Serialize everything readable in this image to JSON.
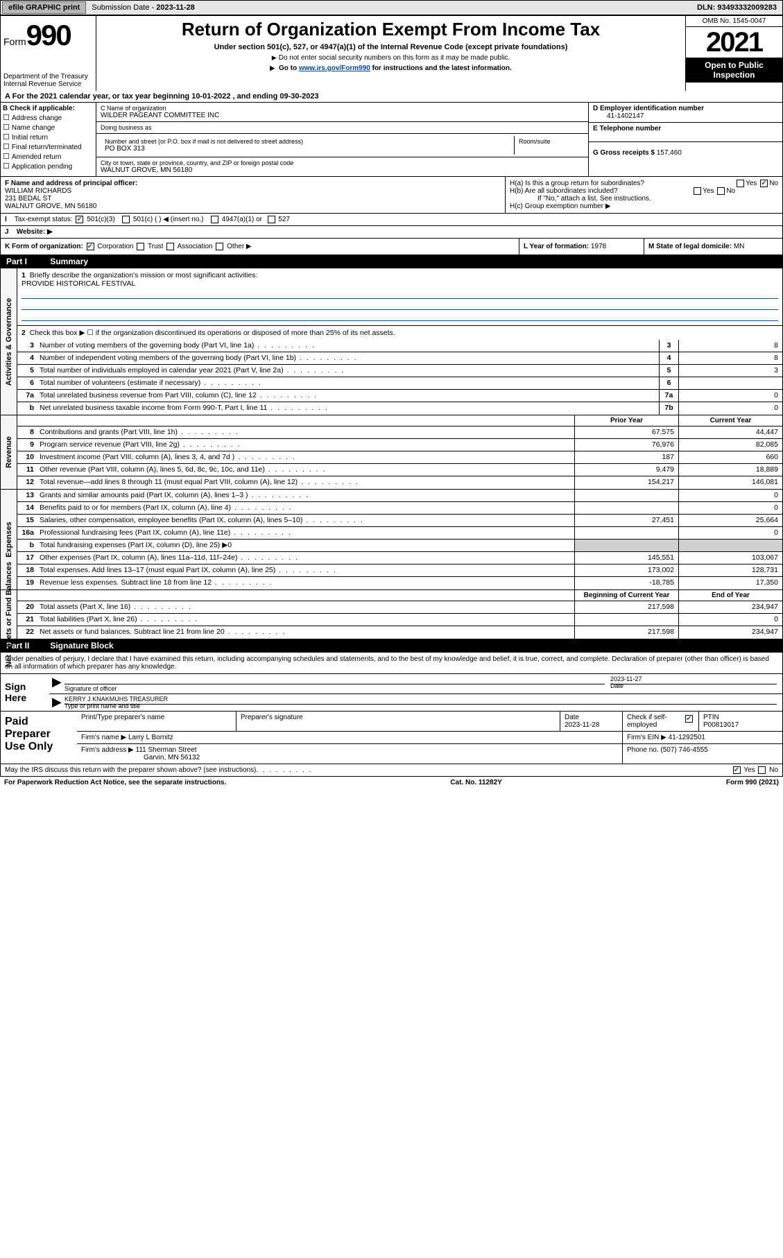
{
  "topbar": {
    "efile_label": "efile GRAPHIC print",
    "submission_label": "Submission Date -",
    "submission_date": "2023-11-28",
    "dln_label": "DLN:",
    "dln": "93493332009283"
  },
  "header": {
    "form_prefix": "Form",
    "form_num": "990",
    "dept": "Department of the Treasury",
    "irs": "Internal Revenue Service",
    "title": "Return of Organization Exempt From Income Tax",
    "sub1": "Under section 501(c), 527, or 4947(a)(1) of the Internal Revenue Code (except private foundations)",
    "sub2": "Do not enter social security numbers on this form as it may be made public.",
    "sub3_pre": "Go to ",
    "sub3_link": "www.irs.gov/Form990",
    "sub3_post": " for instructions and the latest information.",
    "omb": "OMB No. 1545-0047",
    "year": "2021",
    "open_public": "Open to Public Inspection"
  },
  "period": {
    "text": "For the 2021 calendar year, or tax year beginning 10-01-2022  , and ending 09-30-2023"
  },
  "section_b": {
    "label": "B Check if applicable:",
    "items": [
      "Address change",
      "Name change",
      "Initial return",
      "Final return/terminated",
      "Amended return",
      "Application pending"
    ]
  },
  "section_c": {
    "name_label": "C Name of organization",
    "name": "WILDER PAGEANT COMMITTEE INC",
    "dba_label": "Doing business as",
    "dba": "",
    "street_label": "Number and street (or P.O. box if mail is not delivered to street address)",
    "room_label": "Room/suite",
    "street": "PO BOX 313",
    "city_label": "City or town, state or province, country, and ZIP or foreign postal code",
    "city": "WALNUT GROVE, MN  56180"
  },
  "section_d": {
    "label": "D Employer identification number",
    "value": "41-1402147"
  },
  "section_e": {
    "label": "E Telephone number",
    "value": ""
  },
  "section_g": {
    "label": "G Gross receipts $",
    "value": "157,460"
  },
  "section_f": {
    "label": "F Name and address of principal officer:",
    "name": "WILLIAM RICHARDS",
    "addr1": "231 BEDAL ST",
    "addr2": "WALNUT GROVE, MN  56180"
  },
  "section_h": {
    "ha": "H(a)  Is this a group return for subordinates?",
    "hb": "H(b)  Are all subordinates included?",
    "hb_note": "If \"No,\" attach a list. See instructions.",
    "hc": "H(c)  Group exemption number ▶"
  },
  "section_i": {
    "label": "Tax-exempt status:",
    "opt1": "501(c)(3)",
    "opt2": "501(c) (  ) ◀ (insert no.)",
    "opt3": "4947(a)(1) or",
    "opt4": "527"
  },
  "section_j": {
    "label": "Website: ▶",
    "value": ""
  },
  "section_k": {
    "label": "K Form of organization:",
    "corp": "Corporation",
    "trust": "Trust",
    "assoc": "Association",
    "other": "Other ▶"
  },
  "section_l": {
    "label": "L Year of formation:",
    "value": "1978"
  },
  "section_m": {
    "label": "M State of legal domicile:",
    "value": "MN"
  },
  "part1": {
    "header": "Summary",
    "gov_label": "Activities & Governance",
    "rev_label": "Revenue",
    "exp_label": "Expenses",
    "net_label": "Net Assets or Fund Balances",
    "line1_label": "Briefly describe the organization's mission or most significant activities:",
    "line1_val": "PROVIDE HISTORICAL FESTIVAL",
    "line2": "Check this box ▶ ☐  if the organization discontinued its operations or disposed of more than 25% of its net assets.",
    "hdr_prior": "Prior Year",
    "hdr_current": "Current Year",
    "hdr_begin": "Beginning of Current Year",
    "hdr_end": "End of Year",
    "lines_gov": [
      {
        "n": "3",
        "t": "Number of voting members of the governing body (Part VI, line 1a)",
        "box": "3",
        "v": "8"
      },
      {
        "n": "4",
        "t": "Number of independent voting members of the governing body (Part VI, line 1b)",
        "box": "4",
        "v": "8"
      },
      {
        "n": "5",
        "t": "Total number of individuals employed in calendar year 2021 (Part V, line 2a)",
        "box": "5",
        "v": "3"
      },
      {
        "n": "6",
        "t": "Total number of volunteers (estimate if necessary)",
        "box": "6",
        "v": ""
      },
      {
        "n": "7a",
        "t": "Total unrelated business revenue from Part VIII, column (C), line 12",
        "box": "7a",
        "v": "0"
      },
      {
        "n": "b",
        "t": "Net unrelated business taxable income from Form 990-T, Part I, line 11",
        "box": "7b",
        "v": "0"
      }
    ],
    "lines_rev": [
      {
        "n": "8",
        "t": "Contributions and grants (Part VIII, line 1h)",
        "p": "67,575",
        "c": "44,447"
      },
      {
        "n": "9",
        "t": "Program service revenue (Part VIII, line 2g)",
        "p": "76,976",
        "c": "82,085"
      },
      {
        "n": "10",
        "t": "Investment income (Part VIII, column (A), lines 3, 4, and 7d )",
        "p": "187",
        "c": "660"
      },
      {
        "n": "11",
        "t": "Other revenue (Part VIII, column (A), lines 5, 6d, 8c, 9c, 10c, and 11e)",
        "p": "9,479",
        "c": "18,889"
      },
      {
        "n": "12",
        "t": "Total revenue—add lines 8 through 11 (must equal Part VIII, column (A), line 12)",
        "p": "154,217",
        "c": "146,081"
      }
    ],
    "lines_exp": [
      {
        "n": "13",
        "t": "Grants and similar amounts paid (Part IX, column (A), lines 1–3 )",
        "p": "",
        "c": "0"
      },
      {
        "n": "14",
        "t": "Benefits paid to or for members (Part IX, column (A), line 4)",
        "p": "",
        "c": "0"
      },
      {
        "n": "15",
        "t": "Salaries, other compensation, employee benefits (Part IX, column (A), lines 5–10)",
        "p": "27,451",
        "c": "25,664"
      },
      {
        "n": "16a",
        "t": "Professional fundraising fees (Part IX, column (A), line 11e)",
        "p": "",
        "c": "0"
      },
      {
        "n": "b",
        "t": "Total fundraising expenses (Part IX, column (D), line 25) ▶0",
        "p": "SHADE",
        "c": "SHADE"
      },
      {
        "n": "17",
        "t": "Other expenses (Part IX, column (A), lines 11a–11d, 11f–24e)",
        "p": "145,551",
        "c": "103,067"
      },
      {
        "n": "18",
        "t": "Total expenses. Add lines 13–17 (must equal Part IX, column (A), line 25)",
        "p": "173,002",
        "c": "128,731"
      },
      {
        "n": "19",
        "t": "Revenue less expenses. Subtract line 18 from line 12",
        "p": "-18,785",
        "c": "17,350"
      }
    ],
    "lines_net": [
      {
        "n": "20",
        "t": "Total assets (Part X, line 16)",
        "p": "217,598",
        "c": "234,947"
      },
      {
        "n": "21",
        "t": "Total liabilities (Part X, line 26)",
        "p": "",
        "c": "0"
      },
      {
        "n": "22",
        "t": "Net assets or fund balances. Subtract line 21 from line 20",
        "p": "217,598",
        "c": "234,947"
      }
    ]
  },
  "part2": {
    "header": "Signature Block",
    "intro": "Under penalties of perjury, I declare that I have examined this return, including accompanying schedules and statements, and to the best of my knowledge and belief, it is true, correct, and complete. Declaration of preparer (other than officer) is based on all information of which preparer has any knowledge.",
    "sign_here": "Sign Here",
    "sig_officer_label": "Signature of officer",
    "date_label": "Date",
    "sig_date": "2023-11-27",
    "name_title": "KERRY J KNAKMUHS  TREASURER",
    "name_title_label": "Type or print name and title",
    "paid_prep": "Paid Preparer Use Only",
    "pt_name_label": "Print/Type preparer's name",
    "pt_name": "",
    "pt_sig_label": "Preparer's signature",
    "pt_date_label": "Date",
    "pt_date": "2023-11-28",
    "pt_self_label": "Check        if self-employed",
    "ptin_label": "PTIN",
    "ptin": "P00813017",
    "firm_name_label": "Firm's name     ▶",
    "firm_name": "Larry L Bornitz",
    "firm_ein_label": "Firm's EIN ▶",
    "firm_ein": "41-1292501",
    "firm_addr_label": "Firm's address ▶",
    "firm_addr1": "111 Sherman Street",
    "firm_addr2": "Garvin, MN  56132",
    "phone_label": "Phone no.",
    "phone": "(507) 746-4555",
    "discuss": "May the IRS discuss this return with the preparer shown above? (see instructions)",
    "paperwork": "For Paperwork Reduction Act Notice, see the separate instructions.",
    "cat": "Cat. No. 11282Y",
    "form_foot": "Form 990 (2021)"
  },
  "colors": {
    "link": "#004b9b",
    "check_green": "#0a7a3a",
    "black": "#000000",
    "shade": "#d0d0d0"
  }
}
